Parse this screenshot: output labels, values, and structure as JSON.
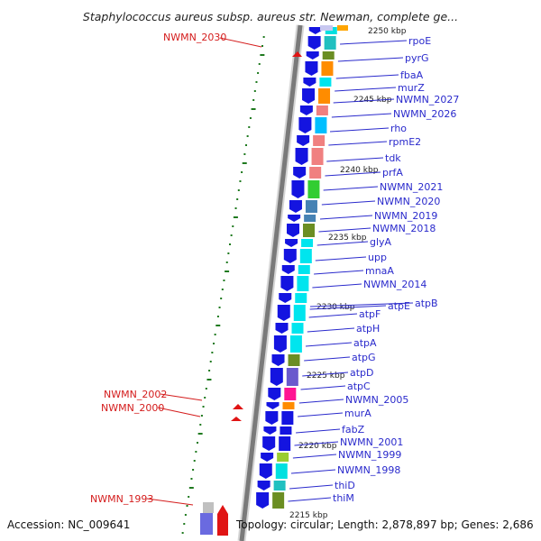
{
  "header": {
    "title": "Staphylococcus aureus subsp. aureus str. Newman, complete ge..."
  },
  "footer": {
    "accession": "Accession: NC_009641",
    "topology": "Topology: circular; Length: 2,878,897 bp; Genes: 2,686"
  },
  "colors": {
    "backbone": "#7a7a7a",
    "dots": "#1f7a1f",
    "cds_forward": "#1414e0",
    "cds_reverse": "#e01414",
    "label_blue": "#2a2acc",
    "label_red": "#d41c1c"
  },
  "kbp_marks": [
    "2250 kbp",
    "2245 kbp",
    "2240 kbp",
    "2235 kbp",
    "2230 kbp",
    "2225 kbp",
    "2220 kbp",
    "2215 kbp"
  ],
  "forward_labels": [
    "rpoE",
    "pyrG",
    "fbaA",
    "murZ",
    "NWMN_2027",
    "NWMN_2026",
    "rho",
    "rpmE2",
    "tdk",
    "prfA",
    "NWMN_2021",
    "NWMN_2020",
    "NWMN_2019",
    "NWMN_2018",
    "glyA",
    "upp",
    "mnaA",
    "NWMN_2014",
    "atpE",
    "atpB",
    "atpF",
    "atpH",
    "atpA",
    "atpG",
    "atpD",
    "atpC",
    "NWMN_2005",
    "murA",
    "fabZ",
    "NWMN_2001",
    "NWMN_1999",
    "NWMN_1998",
    "thiD",
    "thiM"
  ],
  "reverse_labels": [
    "NWMN_2030",
    "NWMN_2002",
    "NWMN_2000",
    "NWMN_1993"
  ]
}
